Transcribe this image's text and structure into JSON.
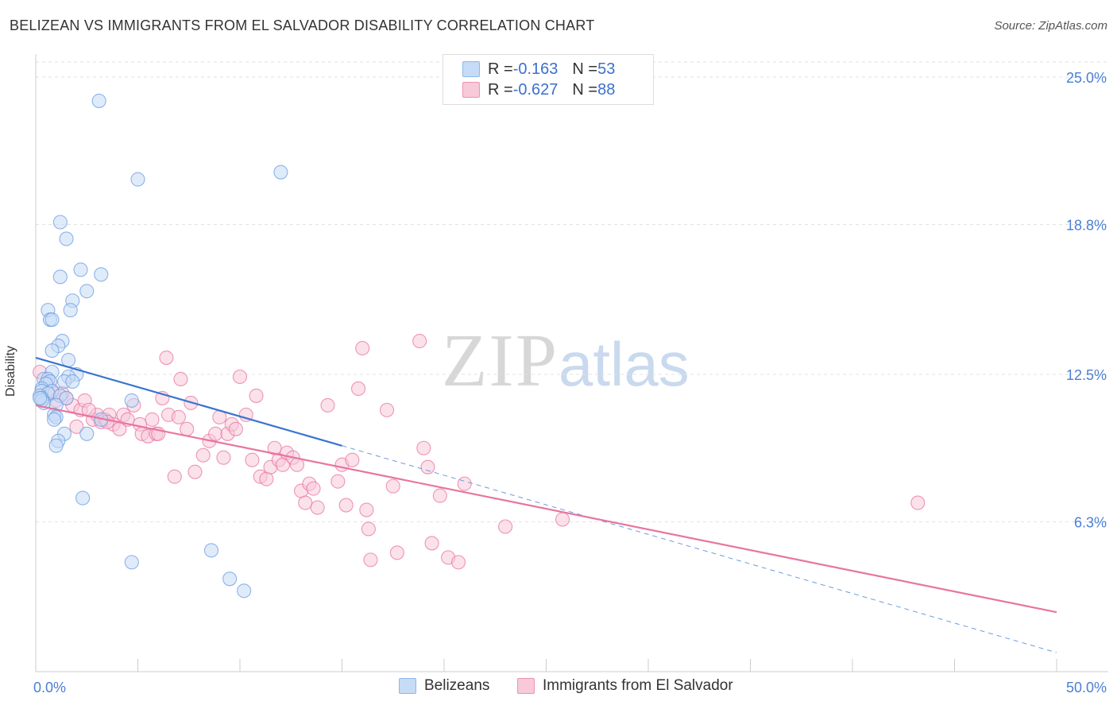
{
  "header": {
    "title": "BELIZEAN VS IMMIGRANTS FROM EL SALVADOR DISABILITY CORRELATION CHART",
    "source": "Source: ZipAtlas.com"
  },
  "legend": {
    "rows": [
      {
        "r_label": "R = ",
        "r_value": "-0.163",
        "n_label": "N = ",
        "n_value": "53",
        "color": "#8fb7ea",
        "fill": "#c6dbf5"
      },
      {
        "r_label": "R = ",
        "r_value": "-0.627",
        "n_label": "N = ",
        "n_value": "88",
        "color": "#ee93b3",
        "fill": "#f8c9d8"
      }
    ]
  },
  "bottom_legend": {
    "series_a": "Belizeans",
    "series_b": "Immigrants from El Salvador"
  },
  "watermark": {
    "zip": "ZIP",
    "atlas": "atlas"
  },
  "chart_data": {
    "type": "scatter",
    "title": "BELIZEAN VS IMMIGRANTS FROM EL SALVADOR DISABILITY CORRELATION CHART",
    "xlabel": "",
    "ylabel": "Disability",
    "xlim": [
      0,
      50
    ],
    "ylim": [
      0,
      26.3
    ],
    "x_tick_labels": [
      {
        "value": 0,
        "label": "0.0%"
      },
      {
        "value": 50,
        "label": "50.0%"
      }
    ],
    "y_ticks": [
      {
        "value": 6.3,
        "label": "6.3%"
      },
      {
        "value": 12.5,
        "label": "12.5%"
      },
      {
        "value": 18.8,
        "label": "18.8%"
      },
      {
        "value": 25.0,
        "label": "25.0%"
      }
    ],
    "grid": true,
    "legend_position": "top-center",
    "series": [
      {
        "name": "Belizeans",
        "color": "#6a9de0",
        "fill": "#c6dbf5",
        "trend": {
          "x0": 0,
          "y0": 13.2,
          "x1": 15,
          "y1": 9.5,
          "dashed_to_x": 50,
          "dashed_to_y": 0.8
        },
        "points": [
          [
            3.1,
            24.0
          ],
          [
            5.0,
            20.7
          ],
          [
            12.0,
            21.0
          ],
          [
            1.2,
            18.9
          ],
          [
            1.5,
            18.2
          ],
          [
            2.2,
            16.9
          ],
          [
            3.2,
            16.7
          ],
          [
            1.2,
            16.6
          ],
          [
            2.5,
            16.0
          ],
          [
            1.8,
            15.6
          ],
          [
            1.7,
            15.2
          ],
          [
            0.6,
            15.2
          ],
          [
            0.7,
            14.8
          ],
          [
            0.8,
            14.8
          ],
          [
            1.3,
            13.9
          ],
          [
            1.1,
            13.7
          ],
          [
            0.8,
            13.5
          ],
          [
            1.6,
            13.1
          ],
          [
            0.8,
            12.6
          ],
          [
            2.0,
            12.5
          ],
          [
            1.6,
            12.4
          ],
          [
            1.4,
            12.2
          ],
          [
            1.8,
            12.2
          ],
          [
            0.4,
            12.3
          ],
          [
            0.6,
            12.3
          ],
          [
            0.7,
            12.2
          ],
          [
            0.5,
            12.1
          ],
          [
            0.3,
            11.9
          ],
          [
            0.3,
            11.8
          ],
          [
            0.8,
            11.8
          ],
          [
            0.6,
            11.7
          ],
          [
            0.2,
            11.6
          ],
          [
            1.2,
            11.6
          ],
          [
            1.5,
            11.5
          ],
          [
            0.3,
            11.5
          ],
          [
            0.4,
            11.3
          ],
          [
            0.3,
            11.4
          ],
          [
            1.0,
            11.2
          ],
          [
            4.7,
            11.4
          ],
          [
            0.9,
            10.8
          ],
          [
            1.0,
            10.7
          ],
          [
            0.9,
            10.6
          ],
          [
            3.2,
            10.6
          ],
          [
            1.4,
            10.0
          ],
          [
            2.5,
            10.0
          ],
          [
            1.1,
            9.7
          ],
          [
            1.0,
            9.5
          ],
          [
            2.3,
            7.3
          ],
          [
            4.7,
            4.6
          ],
          [
            8.6,
            5.1
          ],
          [
            9.5,
            3.9
          ],
          [
            10.2,
            3.4
          ],
          [
            0.2,
            11.5
          ]
        ]
      },
      {
        "name": "Immigrants from El Salvador",
        "color": "#e8759f",
        "fill": "#f8c9d8",
        "trend": {
          "x0": 0,
          "y0": 11.2,
          "x1": 50,
          "y1": 2.5
        },
        "points": [
          [
            0.2,
            12.6
          ],
          [
            0.6,
            12.2
          ],
          [
            0.8,
            11.8
          ],
          [
            0.9,
            11.7
          ],
          [
            1.0,
            11.4
          ],
          [
            1.5,
            11.5
          ],
          [
            1.8,
            11.2
          ],
          [
            2.2,
            11.0
          ],
          [
            2.4,
            11.4
          ],
          [
            2.0,
            10.3
          ],
          [
            2.8,
            10.6
          ],
          [
            3.0,
            10.8
          ],
          [
            3.2,
            10.5
          ],
          [
            3.4,
            10.6
          ],
          [
            3.6,
            10.8
          ],
          [
            3.8,
            10.4
          ],
          [
            4.1,
            10.2
          ],
          [
            4.3,
            10.8
          ],
          [
            4.5,
            10.6
          ],
          [
            4.8,
            11.2
          ],
          [
            5.1,
            10.4
          ],
          [
            5.2,
            10.0
          ],
          [
            5.5,
            9.9
          ],
          [
            5.7,
            10.6
          ],
          [
            5.9,
            10.0
          ],
          [
            6.4,
            13.2
          ],
          [
            6.2,
            11.5
          ],
          [
            6.5,
            10.8
          ],
          [
            6.8,
            8.2
          ],
          [
            7.0,
            10.7
          ],
          [
            7.1,
            12.3
          ],
          [
            7.4,
            10.2
          ],
          [
            7.6,
            11.3
          ],
          [
            7.8,
            8.4
          ],
          [
            8.2,
            9.1
          ],
          [
            8.5,
            9.7
          ],
          [
            8.8,
            10.0
          ],
          [
            9.0,
            10.7
          ],
          [
            9.2,
            9.0
          ],
          [
            9.4,
            10.0
          ],
          [
            9.6,
            10.4
          ],
          [
            9.8,
            10.2
          ],
          [
            10.0,
            12.4
          ],
          [
            10.3,
            10.8
          ],
          [
            10.6,
            8.9
          ],
          [
            10.8,
            11.6
          ],
          [
            11.0,
            8.2
          ],
          [
            11.3,
            8.1
          ],
          [
            11.5,
            8.6
          ],
          [
            11.7,
            9.4
          ],
          [
            11.9,
            8.9
          ],
          [
            12.1,
            8.7
          ],
          [
            12.3,
            9.2
          ],
          [
            12.6,
            9.0
          ],
          [
            12.8,
            8.7
          ],
          [
            13.0,
            7.6
          ],
          [
            13.2,
            7.1
          ],
          [
            13.4,
            7.9
          ],
          [
            13.6,
            7.7
          ],
          [
            13.8,
            6.9
          ],
          [
            14.3,
            11.2
          ],
          [
            14.8,
            8.0
          ],
          [
            15.0,
            8.7
          ],
          [
            15.2,
            7.0
          ],
          [
            15.5,
            8.9
          ],
          [
            15.8,
            11.9
          ],
          [
            16.0,
            13.6
          ],
          [
            16.2,
            6.8
          ],
          [
            16.3,
            6.0
          ],
          [
            16.4,
            4.7
          ],
          [
            17.2,
            11.0
          ],
          [
            17.5,
            7.8
          ],
          [
            17.7,
            5.0
          ],
          [
            18.8,
            13.9
          ],
          [
            19.0,
            9.4
          ],
          [
            19.2,
            8.6
          ],
          [
            19.4,
            5.4
          ],
          [
            19.8,
            7.4
          ],
          [
            20.2,
            4.8
          ],
          [
            20.7,
            4.6
          ],
          [
            21.0,
            7.9
          ],
          [
            23.0,
            6.1
          ],
          [
            25.8,
            6.4
          ],
          [
            43.2,
            7.1
          ],
          [
            1.3,
            11.7
          ],
          [
            2.6,
            11.0
          ],
          [
            3.5,
            10.5
          ],
          [
            6.0,
            10.0
          ]
        ]
      }
    ]
  }
}
